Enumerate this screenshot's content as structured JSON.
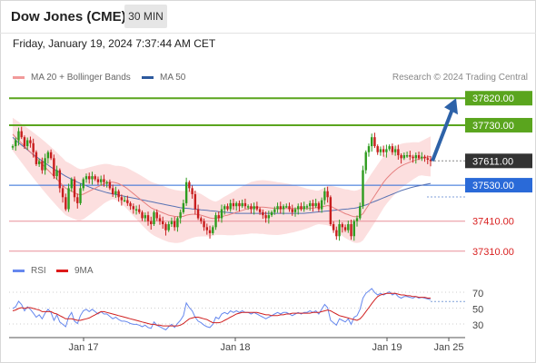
{
  "header": {
    "title": "Dow Jones (CME)",
    "timeframe": "30 MIN"
  },
  "subtitle": "Friday, January 19, 2024 7:37:44 AM CET",
  "legend": {
    "ma20_label": "MA 20 + Bollinger Bands",
    "ma50_label": "MA 50",
    "copyright": "Research © 2024 Trading Central"
  },
  "rsi_legend": {
    "rsi_label": "RSI",
    "ma_label": "9MA"
  },
  "colors": {
    "resistance": "#5aa51e",
    "current": "#333333",
    "pivot": "#2a6ad8",
    "support": "#e88f98",
    "candle_up": "#2e9c1f",
    "candle_down": "#c81e1e",
    "bollinger": "#fcd9d9",
    "ma20": "#e68080",
    "ma50": "#5872b3",
    "rsi": "#6688ee",
    "rsi_ma": "#d02020",
    "arrow": "#2d62a8"
  },
  "chart_data": {
    "type": "candlestick",
    "y_range": [
      37270,
      37860
    ],
    "x_ticks": [
      "Jan 17",
      "Jan 18",
      "Jan 19",
      "Jan 25"
    ],
    "levels": [
      {
        "kind": "resistance",
        "label": "37820.00",
        "value": 37820
      },
      {
        "kind": "resistance",
        "label": "37730.00",
        "value": 37730
      },
      {
        "kind": "current",
        "label": "37611.00",
        "value": 37611
      },
      {
        "kind": "pivot",
        "label": "37530.00",
        "value": 37530
      },
      {
        "kind": "support",
        "label": "37410.00",
        "value": 37410
      },
      {
        "kind": "support",
        "label": "37310.00",
        "value": 37310
      }
    ],
    "forecast": {
      "from": 37611,
      "to": 37820
    },
    "close": [
      37660,
      37680,
      37710,
      37690,
      37660,
      37680,
      37670,
      37640,
      37600,
      37610,
      37580,
      37620,
      37640,
      37620,
      37560,
      37580,
      37520,
      37490,
      37450,
      37520,
      37550,
      37490,
      37470,
      37520,
      37550,
      37560,
      37550,
      37560,
      37550,
      37540,
      37550,
      37540,
      37540,
      37520,
      37500,
      37510,
      37490,
      37480,
      37480,
      37470,
      37460,
      37450,
      37450,
      37440,
      37420,
      37430,
      37410,
      37400,
      37440,
      37420,
      37410,
      37400,
      37380,
      37400,
      37410,
      37390,
      37420,
      37440,
      37470,
      37540,
      37520,
      37500,
      37450,
      37420,
      37410,
      37390,
      37380,
      37370,
      37390,
      37430,
      37420,
      37450,
      37460,
      37450,
      37470,
      37460,
      37470,
      37460,
      37470,
      37460,
      37460,
      37450,
      37460,
      37450,
      37440,
      37430,
      37420,
      37430,
      37440,
      37450,
      37460,
      37450,
      37460,
      37460,
      37450,
      37440,
      37450,
      37460,
      37450,
      37460,
      37460,
      37470,
      37460,
      37470,
      37450,
      37480,
      37510,
      37490,
      37400,
      37380,
      37360,
      37400,
      37390,
      37380,
      37400,
      37360,
      37410,
      37420,
      37460,
      37580,
      37640,
      37660,
      37690,
      37660,
      37640,
      37650,
      37640,
      37650,
      37660,
      37640,
      37650,
      37630,
      37620,
      37630,
      37630,
      37625,
      37620,
      37630,
      37620,
      37625,
      37620,
      37615,
      37611
    ],
    "ma20": [
      37700,
      37690,
      37680,
      37670,
      37660,
      37650,
      37640,
      37630,
      37620,
      37610,
      37600,
      37590,
      37580,
      37570,
      37560,
      37550,
      37540,
      37530,
      37520,
      37515,
      37510,
      37505,
      37500,
      37498,
      37500,
      37505,
      37510,
      37515,
      37520,
      37525,
      37530,
      37535,
      37538,
      37540,
      37540,
      37538,
      37535,
      37530,
      37525,
      37518,
      37510,
      37502,
      37494,
      37486,
      37478,
      37470,
      37462,
      37455,
      37450,
      37446,
      37442,
      37438,
      37434,
      37430,
      37428,
      37426,
      37425,
      37425,
      37426,
      37430,
      37432,
      37433,
      37433,
      37432,
      37430,
      37427,
      37424,
      37421,
      37419,
      37420,
      37422,
      37425,
      37428,
      37430,
      37433,
      37436,
      37440,
      37443,
      37446,
      37449,
      37452,
      37455,
      37456,
      37457,
      37457,
      37457,
      37456,
      37455,
      37454,
      37453,
      37452,
      37452,
      37452,
      37452,
      37452,
      37452,
      37452,
      37452,
      37452,
      37452,
      37452,
      37453,
      37454,
      37455,
      37456,
      37458,
      37460,
      37462,
      37460,
      37455,
      37450,
      37445,
      37440,
      37435,
      37432,
      37428,
      37425,
      37425,
      37428,
      37435,
      37450,
      37465,
      37480,
      37495,
      37510,
      37525,
      37540,
      37552,
      37562,
      37572,
      37580,
      37588,
      37594,
      37599,
      37603,
      37607,
      37611,
      37614,
      37617,
      37620,
      37622,
      37624,
      37626
    ],
    "ma50": [
      37690,
      37680,
      37672,
      37664,
      37656,
      37648,
      37640,
      37632,
      37625,
      37618,
      37611,
      37604,
      37597,
      37590,
      37584,
      37578,
      37572,
      37566,
      37560,
      37555,
      37550,
      37545,
      37540,
      37536,
      37532,
      37528,
      37524,
      37520,
      37517,
      37514,
      37511,
      37508,
      37505,
      37503,
      37501,
      37499,
      37497,
      37495,
      37493,
      37491,
      37489,
      37487,
      37485,
      37483,
      37481,
      37479,
      37477,
      37475,
      37473,
      37471,
      37469,
      37467,
      37465,
      37463,
      37461,
      37459,
      37457,
      37455,
      37454,
      37453,
      37452,
      37451,
      37450,
      37449,
      37448,
      37447,
      37446,
      37445,
      37444,
      37443,
      37442,
      37441,
      37440,
      37439,
      37438,
      37437,
      37436,
      37436,
      37436,
      37436,
      37436,
      37436,
      37436,
      37436,
      37436,
      37436,
      37436,
      37436,
      37436,
      37436,
      37436,
      37436,
      37436,
      37436,
      37436,
      37436,
      37436,
      37436,
      37436,
      37436,
      37437,
      37438,
      37439,
      37440,
      37441,
      37442,
      37443,
      37444,
      37445,
      37446,
      37447,
      37448,
      37449,
      37450,
      37451,
      37452,
      37453,
      37455,
      37458,
      37461,
      37464,
      37468,
      37472,
      37476,
      37480,
      37484,
      37488,
      37492,
      37496,
      37500,
      37504,
      37508,
      37512,
      37515,
      37518,
      37521,
      37524,
      37526,
      37528,
      37530,
      37532,
      37534,
      37536
    ],
    "rsi": [
      53,
      55,
      62,
      58,
      50,
      55,
      52,
      47,
      42,
      45,
      40,
      47,
      52,
      48,
      38,
      45,
      36,
      33,
      30,
      42,
      48,
      37,
      34,
      44,
      50,
      52,
      49,
      52,
      49,
      46,
      49,
      46,
      46,
      43,
      40,
      42,
      39,
      37,
      37,
      36,
      34,
      33,
      33,
      32,
      30,
      32,
      29,
      28,
      36,
      32,
      30,
      28,
      26,
      30,
      33,
      29,
      34,
      38,
      44,
      60,
      54,
      50,
      42,
      37,
      35,
      32,
      30,
      29,
      33,
      42,
      40,
      46,
      48,
      46,
      50,
      48,
      50,
      48,
      50,
      48,
      48,
      46,
      48,
      46,
      44,
      42,
      40,
      42,
      44,
      46,
      48,
      46,
      48,
      48,
      46,
      44,
      46,
      48,
      46,
      48,
      48,
      50,
      48,
      50,
      46,
      52,
      58,
      54,
      38,
      35,
      32,
      40,
      38,
      36,
      40,
      33,
      42,
      44,
      52,
      66,
      72,
      75,
      78,
      73,
      70,
      72,
      70,
      72,
      74,
      70,
      72,
      68,
      66,
      68,
      68,
      67,
      66,
      68,
      66,
      67,
      66,
      65,
      64
    ],
    "rsi_ma": [
      50,
      51,
      53,
      54,
      53,
      54,
      54,
      53,
      52,
      51,
      49,
      49,
      49,
      49,
      47,
      46,
      44,
      42,
      40,
      40,
      40,
      39,
      38,
      38,
      39,
      40,
      41,
      43,
      45,
      47,
      49,
      49,
      48,
      47,
      46,
      45,
      44,
      43,
      42,
      41,
      40,
      39,
      38,
      37,
      36,
      35,
      34,
      33,
      33,
      32,
      32,
      31,
      31,
      31,
      31,
      31,
      31,
      32,
      34,
      37,
      40,
      41,
      42,
      42,
      41,
      40,
      39,
      37,
      35,
      35,
      35,
      36,
      38,
      40,
      42,
      44,
      46,
      47,
      48,
      48,
      48,
      48,
      48,
      48,
      47,
      46,
      45,
      45,
      44,
      44,
      44,
      45,
      45,
      46,
      46,
      47,
      47,
      47,
      47,
      47,
      47,
      47,
      48,
      48,
      48,
      49,
      50,
      51,
      50,
      48,
      46,
      44,
      43,
      42,
      41,
      40,
      39,
      38,
      40,
      44,
      49,
      54,
      59,
      64,
      68,
      70,
      71,
      72,
      72,
      72,
      72,
      71,
      70,
      70,
      69,
      69,
      68,
      68,
      67,
      67,
      67,
      66,
      66
    ],
    "rsi_axis": [
      30,
      50,
      70
    ]
  }
}
